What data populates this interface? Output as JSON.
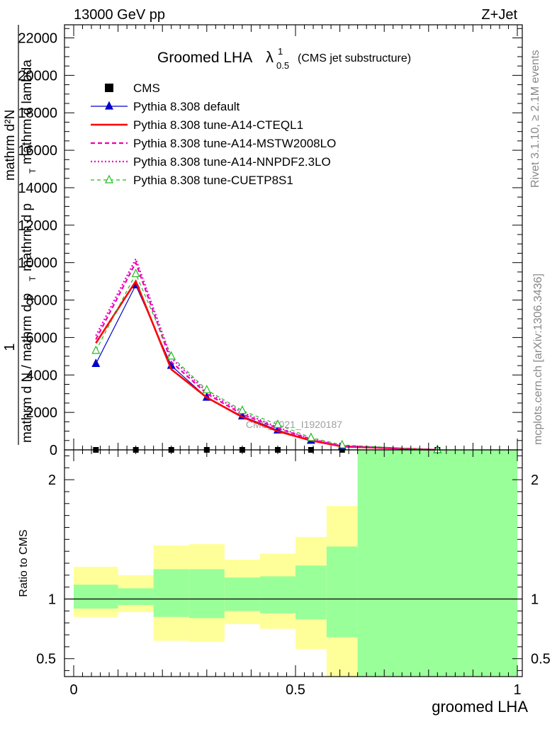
{
  "header": {
    "left": "13000 GeV pp",
    "right": "Z+Jet"
  },
  "side_labels": {
    "top": "Rivet 3.1.10, ≥ 2.1M events",
    "bottom": "mcplots.cern.ch [arXiv:1306.3436]"
  },
  "chart_data": [
    {
      "type": "line",
      "title_main": "Groomed LHA",
      "title_lambda": "λ",
      "title_sup": "1",
      "title_sub": "0.5",
      "title_note": "(CMS jet substructure)",
      "ylabel_parts": [
        "1",
        "mathrm d N / mathrm d p",
        "T",
        "mathrm d ",
        "mathrm d",
        "N",
        "mathrm d^2",
        "mathrm",
        "p",
        "mathrm d",
        "lambda"
      ],
      "ylabel": {
        "num": "1",
        "den": "mathrm d N / mathrm d p",
        "den_sub": "T",
        "frac_num": "mathrm d²N",
        "frac_den": "mathrm d p",
        "frac_den_sub": "T",
        "frac_den_tail": "mathrm d lambda"
      },
      "xlim": [
        0,
        1
      ],
      "ylim": [
        0,
        22700
      ],
      "yticks": [
        0,
        2000,
        4000,
        6000,
        8000,
        10000,
        12000,
        14000,
        16000,
        18000,
        20000,
        22000
      ],
      "ytick_labels": [
        "0",
        "2000",
        "4000",
        "6000",
        "8000",
        "10000",
        "12000",
        "14000",
        "16000",
        "18000",
        "20000",
        "22000"
      ],
      "watermark": "CMS_2021_I1920187",
      "x": [
        0.05,
        0.14,
        0.22,
        0.3,
        0.38,
        0.46,
        0.535,
        0.605,
        0.82
      ],
      "series": [
        {
          "name": "CMS",
          "style": "data",
          "color": "#000000",
          "values": [
            0,
            0,
            0,
            0,
            0,
            0,
            0,
            0,
            0
          ]
        },
        {
          "name": "Pythia 8.308 default",
          "style": "solid-triangle",
          "color": "#0000cc",
          "values": [
            4600,
            8800,
            4500,
            2800,
            1800,
            1050,
            500,
            170,
            0
          ]
        },
        {
          "name": "Pythia 8.308 tune-A14-CTEQL1",
          "style": "solid-thick",
          "color": "#ff0000",
          "values": [
            5700,
            9000,
            4300,
            2800,
            1750,
            1000,
            500,
            180,
            0
          ]
        },
        {
          "name": "Pythia 8.308 tune-A14-MSTW2008LO",
          "style": "dashed",
          "color": "#ee00aa",
          "values": [
            5900,
            10000,
            4700,
            3000,
            1900,
            1150,
            560,
            200,
            0
          ]
        },
        {
          "name": "Pythia 8.308 tune-A14-NNPDF2.3LO",
          "style": "dotted",
          "color": "#ee00cc",
          "values": [
            6100,
            10200,
            4900,
            3100,
            2000,
            1200,
            580,
            210,
            0
          ]
        },
        {
          "name": "Pythia 8.308 tune-CUETP8S1",
          "style": "dashed-triangle",
          "color": "#22bb22",
          "values": [
            5300,
            9400,
            5000,
            3200,
            2100,
            1350,
            650,
            260,
            0
          ]
        }
      ]
    },
    {
      "type": "area",
      "ylabel": "Ratio to CMS",
      "xlabel": "groomed LHA",
      "xlim": [
        0,
        1
      ],
      "ylim": [
        0.35,
        2.25
      ],
      "yticks": [
        0.5,
        1,
        2
      ],
      "ytick_labels": [
        "0.5",
        "1",
        "2"
      ],
      "xticks": [
        0,
        0.5,
        1
      ],
      "xtick_labels": [
        "0",
        "0.5",
        "1"
      ],
      "bins": [
        {
          "lo": 0.0,
          "hi": 0.1,
          "green": [
            0.92,
            1.12
          ],
          "yellow": [
            0.85,
            1.27
          ]
        },
        {
          "lo": 0.1,
          "hi": 0.18,
          "green": [
            0.95,
            1.09
          ],
          "yellow": [
            0.89,
            1.2
          ]
        },
        {
          "lo": 0.18,
          "hi": 0.26,
          "green": [
            0.85,
            1.25
          ],
          "yellow": [
            0.65,
            1.45
          ]
        },
        {
          "lo": 0.26,
          "hi": 0.34,
          "green": [
            0.84,
            1.25
          ],
          "yellow": [
            0.64,
            1.46
          ]
        },
        {
          "lo": 0.34,
          "hi": 0.42,
          "green": [
            0.9,
            1.18
          ],
          "yellow": [
            0.79,
            1.33
          ]
        },
        {
          "lo": 0.42,
          "hi": 0.5,
          "green": [
            0.88,
            1.19
          ],
          "yellow": [
            0.75,
            1.38
          ]
        },
        {
          "lo": 0.5,
          "hi": 0.57,
          "green": [
            0.83,
            1.28
          ],
          "yellow": [
            0.58,
            1.52
          ]
        },
        {
          "lo": 0.57,
          "hi": 0.64,
          "green": [
            0.68,
            1.44
          ],
          "yellow": [
            0.35,
            1.78
          ]
        },
        {
          "lo": 0.64,
          "hi": 1.0,
          "green": [
            0.35,
            2.25
          ],
          "yellow": [
            0.35,
            2.25
          ]
        }
      ],
      "colors": {
        "green": "#99ff99",
        "yellow": "#ffff99"
      }
    }
  ]
}
